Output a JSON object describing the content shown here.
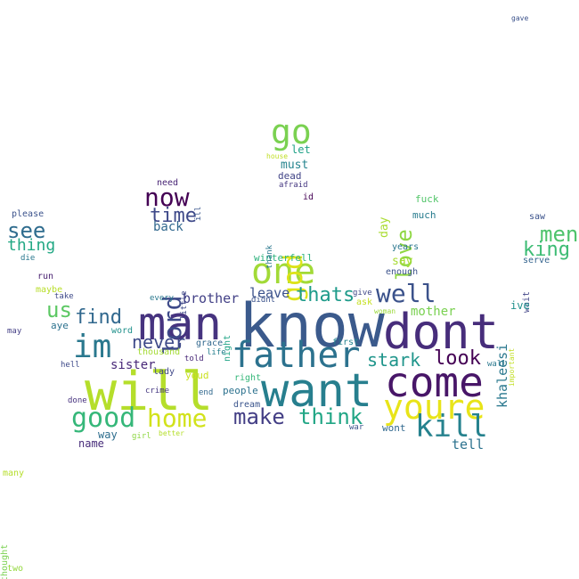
{
  "words": [
    {
      "text": "know",
      "color": "#3b5a8c"
    },
    {
      "text": "dont",
      "color": "#472d7b"
    },
    {
      "text": "will",
      "color": "#b5de2b"
    },
    {
      "text": "man",
      "color": "#46337f"
    },
    {
      "text": "want",
      "color": "#277f8e"
    },
    {
      "text": "come",
      "color": "#481668"
    },
    {
      "text": "father",
      "color": "#2c728e"
    },
    {
      "text": "youre",
      "color": "#e8e419"
    },
    {
      "text": "one",
      "color": "#a2da37"
    },
    {
      "text": "go",
      "color": "#7ad151"
    },
    {
      "text": "im",
      "color": "#2a788e"
    },
    {
      "text": "good",
      "color": "#35b779"
    },
    {
      "text": "home",
      "color": "#d2e21b"
    },
    {
      "text": "kill",
      "color": "#26828e"
    },
    {
      "text": "god",
      "color": "#dde318"
    },
    {
      "text": "now",
      "color": "#440154"
    },
    {
      "text": "lord",
      "color": "#3e4a89"
    },
    {
      "text": "well",
      "color": "#3b528b"
    },
    {
      "text": "make",
      "color": "#433e85"
    },
    {
      "text": "think",
      "color": "#21a685"
    },
    {
      "text": "thats",
      "color": "#1e9b8a"
    },
    {
      "text": "love",
      "color": "#8fd744"
    },
    {
      "text": "men",
      "color": "#4ec36b"
    },
    {
      "text": "time",
      "color": "#3e4989"
    },
    {
      "text": "see",
      "color": "#2f6c8e"
    },
    {
      "text": "us",
      "color": "#5cc863"
    },
    {
      "text": "find",
      "color": "#31688e"
    },
    {
      "text": "king",
      "color": "#3dbc74"
    },
    {
      "text": "look",
      "color": "#440154"
    },
    {
      "text": "stark",
      "color": "#1f958b"
    },
    {
      "text": "never",
      "color": "#3e4a89"
    },
    {
      "text": "thing",
      "color": "#22a884"
    },
    {
      "text": "leave",
      "color": "#3b528b"
    },
    {
      "text": "brother",
      "color": "#424086"
    },
    {
      "text": "mother",
      "color": "#7ad151"
    },
    {
      "text": "sister",
      "color": "#482878"
    },
    {
      "text": "khaleesi",
      "color": "#2a788e"
    },
    {
      "text": "tell",
      "color": "#2c728e"
    },
    {
      "text": "back",
      "color": "#31688e"
    },
    {
      "text": "must",
      "color": "#25848e"
    },
    {
      "text": "say",
      "color": "#a8db34"
    },
    {
      "text": "day",
      "color": "#aadc32"
    },
    {
      "text": "name",
      "color": "#472c7a"
    },
    {
      "text": "way",
      "color": "#2e6e8e"
    },
    {
      "text": "winterfell",
      "color": "#2db27d"
    },
    {
      "text": "let",
      "color": "#1fa187"
    },
    {
      "text": "dead",
      "color": "#414487"
    },
    {
      "text": "afraid",
      "color": "#453781"
    },
    {
      "text": "id",
      "color": "#440154"
    },
    {
      "text": "need",
      "color": "#482475"
    },
    {
      "text": "much",
      "color": "#287c8e"
    },
    {
      "text": "fuck",
      "color": "#52c569"
    },
    {
      "text": "years",
      "color": "#2a768e"
    },
    {
      "text": "enough",
      "color": "#3b528b"
    },
    {
      "text": "please",
      "color": "#3b528b"
    },
    {
      "text": "die",
      "color": "#2a788e"
    },
    {
      "text": "run",
      "color": "#481f70"
    },
    {
      "text": "maybe",
      "color": "#b8de29"
    },
    {
      "text": "take",
      "color": "#3e4989"
    },
    {
      "text": "aye",
      "color": "#2c728e"
    },
    {
      "text": "may",
      "color": "#433e85"
    },
    {
      "text": "word",
      "color": "#21918c"
    },
    {
      "text": "thousand",
      "color": "#a5db36"
    },
    {
      "text": "hell",
      "color": "#3e4a89"
    },
    {
      "text": "grace",
      "color": "#31688e"
    },
    {
      "text": "told",
      "color": "#482878"
    },
    {
      "text": "life",
      "color": "#277f8e"
    },
    {
      "text": "youd",
      "color": "#cae11f"
    },
    {
      "text": "lady",
      "color": "#3f4788"
    },
    {
      "text": "crime",
      "color": "#453781"
    },
    {
      "text": "end",
      "color": "#31688e"
    },
    {
      "text": "people",
      "color": "#2c728e"
    },
    {
      "text": "right",
      "color": "#35b779"
    },
    {
      "text": "dream",
      "color": "#3a548c"
    },
    {
      "text": "every",
      "color": "#2a788e"
    },
    {
      "text": "done",
      "color": "#46327e"
    },
    {
      "text": "girl",
      "color": "#8fd744"
    },
    {
      "text": "better",
      "color": "#b5de2b"
    },
    {
      "text": "war",
      "color": "#3b528b"
    },
    {
      "text": "wont",
      "color": "#31688e"
    },
    {
      "text": "first",
      "color": "#25848e"
    },
    {
      "text": "wall",
      "color": "#2a788e"
    },
    {
      "text": "serve",
      "color": "#33638d"
    },
    {
      "text": "saw",
      "color": "#3b528b"
    },
    {
      "text": "wait",
      "color": "#414487"
    },
    {
      "text": "ive",
      "color": "#21918c"
    },
    {
      "text": "important",
      "color": "#c2df23"
    },
    {
      "text": "woman",
      "color": "#9bd93c"
    },
    {
      "text": "give",
      "color": "#3f4788"
    },
    {
      "text": "didnt",
      "color": "#3b528b"
    },
    {
      "text": "ask",
      "color": "#c5e021"
    },
    {
      "text": "night",
      "color": "#20a486"
    },
    {
      "text": "little",
      "color": "#3e4989"
    },
    {
      "text": "ill",
      "color": "#39568c"
    },
    {
      "text": "thank",
      "color": "#2a788e"
    },
    {
      "text": "house",
      "color": "#c0df25"
    },
    {
      "text": "gave",
      "color": "#3b528b"
    },
    {
      "text": "many",
      "color": "#b5de2b"
    },
    {
      "text": "thought",
      "color": "#7ad151"
    },
    {
      "text": "two",
      "color": "#95d840"
    }
  ]
}
